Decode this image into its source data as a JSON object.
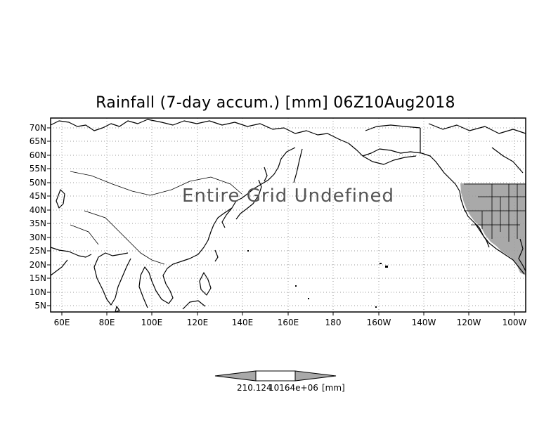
{
  "map": {
    "title": "Rainfall (7-day accum.) [mm] 06Z10Aug2018",
    "overlay_text": "Entire Grid Undefined",
    "lat_labels": [
      "70N",
      "65N",
      "60N",
      "55N",
      "50N",
      "45N",
      "40N",
      "35N",
      "30N",
      "25N",
      "20N",
      "15N",
      "10N",
      "5N"
    ],
    "lon_labels": [
      "60E",
      "80E",
      "100E",
      "120E",
      "140E",
      "160E",
      "180",
      "160W",
      "140W",
      "120W",
      "100W"
    ],
    "colorbar": {
      "left_value": "210.124",
      "mid_value": "10164e+06",
      "unit": "[mm]"
    },
    "colors": {
      "land_shade": "#a9a9a9",
      "frame": "#000000",
      "grid": "#9a9a9a"
    },
    "extent": {
      "lon_min": 57,
      "lon_max": 263,
      "lat_min": 2,
      "lat_max": 72
    }
  }
}
